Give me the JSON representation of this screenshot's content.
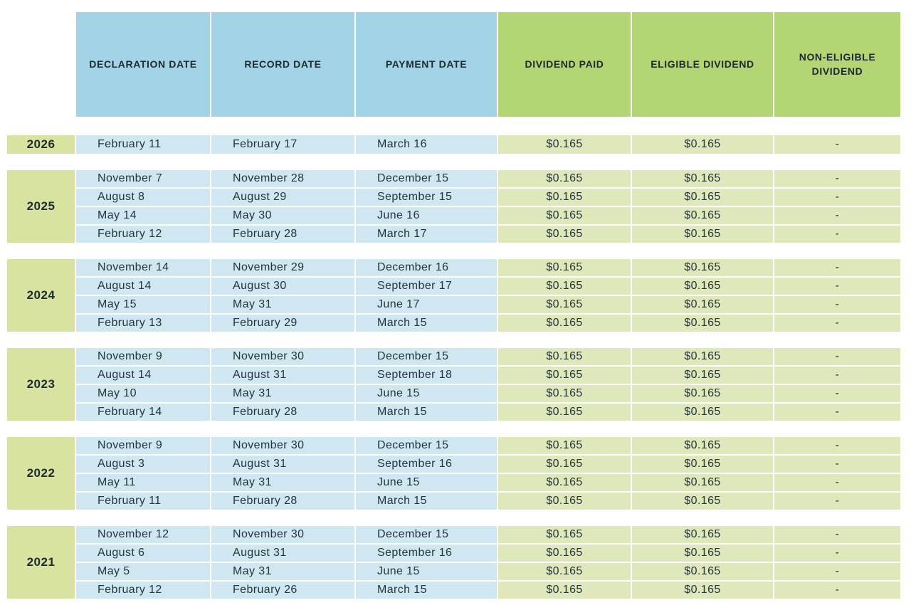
{
  "colors": {
    "background": "#ffffff",
    "header_blue": "#a3d3e6",
    "header_green": "#b3d573",
    "row_blue": "#cfe7f1",
    "row_green": "#dee8ba",
    "year_green": "#d9e3a1",
    "header_text": "#1c2b2e",
    "body_text": "#24343c"
  },
  "chart_data": {
    "type": "table",
    "column_headers": [
      "DECLARATION DATE",
      "RECORD DATE",
      "PAYMENT DATE",
      "DIVIDEND PAID",
      "ELIGIBLE DIVIDEND",
      "NON-ELIGIBLE DIVIDEND"
    ],
    "header_styles": [
      "blue",
      "blue",
      "blue",
      "green",
      "green",
      "green"
    ],
    "cell_names": [
      "declaration-date-cell",
      "record-date-cell",
      "payment-date-cell",
      "dividend-paid-cell",
      "eligible-dividend-cell",
      "non-eligible-dividend-cell"
    ],
    "year_groups": [
      {
        "year": "2026",
        "rows": [
          [
            "February 11",
            "February 17",
            "March 16",
            "$0.165",
            "$0.165",
            "-"
          ]
        ]
      },
      {
        "year": "2025",
        "rows": [
          [
            "November 7",
            "November 28",
            "December 15",
            "$0.165",
            "$0.165",
            "-"
          ],
          [
            "August 8",
            "August 29",
            "September 15",
            "$0.165",
            "$0.165",
            "-"
          ],
          [
            "May 14",
            "May 30",
            "June 16",
            "$0.165",
            "$0.165",
            "-"
          ],
          [
            "February 12",
            "February 28",
            "March 17",
            "$0.165",
            "$0.165",
            "-"
          ]
        ]
      },
      {
        "year": "2024",
        "rows": [
          [
            "November 14",
            "November 29",
            "December 16",
            "$0.165",
            "$0.165",
            "-"
          ],
          [
            "August 14",
            "August 30",
            "September 17",
            "$0.165",
            "$0.165",
            "-"
          ],
          [
            "May 15",
            "May 31",
            "June 17",
            "$0.165",
            "$0.165",
            "-"
          ],
          [
            "February 13",
            "February 29",
            "March 15",
            "$0.165",
            "$0.165",
            "-"
          ]
        ]
      },
      {
        "year": "2023",
        "rows": [
          [
            "November 9",
            "November 30",
            "December 15",
            "$0.165",
            "$0.165",
            "-"
          ],
          [
            "August 14",
            "August 31",
            "September 18",
            "$0.165",
            "$0.165",
            "-"
          ],
          [
            "May 10",
            "May 31",
            "June 15",
            "$0.165",
            "$0.165",
            "-"
          ],
          [
            "February 14",
            "February 28",
            "March 15",
            "$0.165",
            "$0.165",
            "-"
          ]
        ]
      },
      {
        "year": "2022",
        "rows": [
          [
            "November 9",
            "November 30",
            "December 15",
            "$0.165",
            "$0.165",
            "-"
          ],
          [
            "August 3",
            "August 31",
            "September 16",
            "$0.165",
            "$0.165",
            "-"
          ],
          [
            "May 11",
            "May 31",
            "June 15",
            "$0.165",
            "$0.165",
            "-"
          ],
          [
            "February 11",
            "February 28",
            "March 15",
            "$0.165",
            "$0.165",
            "-"
          ]
        ]
      },
      {
        "year": "2021",
        "rows": [
          [
            "November 12",
            "November 30",
            "December 15",
            "$0.165",
            "$0.165",
            "-"
          ],
          [
            "August 6",
            "August 31",
            "September 16",
            "$0.165",
            "$0.165",
            "-"
          ],
          [
            "May 5",
            "May 31",
            "June 15",
            "$0.165",
            "$0.165",
            "-"
          ],
          [
            "February 12",
            "February 26",
            "March 15",
            "$0.165",
            "$0.165",
            "-"
          ]
        ]
      }
    ]
  }
}
